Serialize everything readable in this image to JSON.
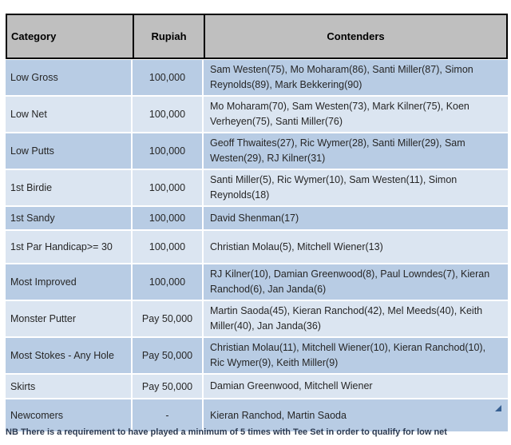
{
  "table": {
    "header": {
      "category": "Category",
      "rupiah": "Rupiah",
      "contenders": "Contenders"
    },
    "rows": [
      {
        "category": "Low Gross",
        "rupiah": "100,000",
        "contenders": "Sam Westen(75), Mo Moharam(86), Santi Miller(87), Simon Reynolds(89), Mark Bekkering(90)"
      },
      {
        "category": "Low Net",
        "rupiah": "100,000",
        "contenders": "Mo Moharam(70), Sam Westen(73), Mark Kilner(75), Koen Verheyen(75), Santi Miller(76)"
      },
      {
        "category": "Low Putts",
        "rupiah": "100,000",
        "contenders": "Geoff Thwaites(27), Ric Wymer(28), Santi Miller(29), Sam Westen(29), RJ Kilner(31)"
      },
      {
        "category": "1st Birdie",
        "rupiah": "100,000",
        "contenders": "Santi Miller(5), Ric Wymer(10), Sam Westen(11), Simon Reynolds(18)"
      },
      {
        "category": "1st Sandy",
        "rupiah": "100,000",
        "contenders": "David Shenman(17)"
      },
      {
        "category": "1st Par Handicap>= 30",
        "rupiah": "100,000",
        "contenders": "Christian Molau(5), Mitchell Wiener(13)"
      },
      {
        "category": "Most Improved",
        "rupiah": "100,000",
        "contenders": "RJ Kilner(10), Damian Greenwood(8), Paul Lowndes(7), Kieran Ranchod(6), Jan Janda(6)"
      },
      {
        "category": "Monster Putter",
        "rupiah": "Pay 50,000",
        "contenders": "Martin Saoda(45), Kieran Ranchod(42), Mel Meeds(40), Keith Miller(40), Jan Janda(36)"
      },
      {
        "category": "Most Stokes - Any Hole",
        "rupiah": "Pay 50,000",
        "contenders": "Christian Molau(11), Mitchell Wiener(10), Kieran Ranchod(10), Ric Wymer(9), Keith Miller(9)"
      },
      {
        "category": "Skirts",
        "rupiah": "Pay 50,000",
        "contenders": "Damian Greenwood, Mitchell Wiener"
      },
      {
        "category": "Newcomers",
        "rupiah": "-",
        "contenders": "Kieran Ranchod, Martin Saoda"
      }
    ]
  },
  "note": "NB There is a requirement to have played a minimum of 5 times with Tee Set in order to qualify for low net",
  "icons": {
    "resize_handle": "se-corner-triangle"
  },
  "colors": {
    "header_bg": "#bfbfbf",
    "row_dark": "#b8cce4",
    "row_light": "#dbe5f1",
    "accent": "#365f91"
  }
}
